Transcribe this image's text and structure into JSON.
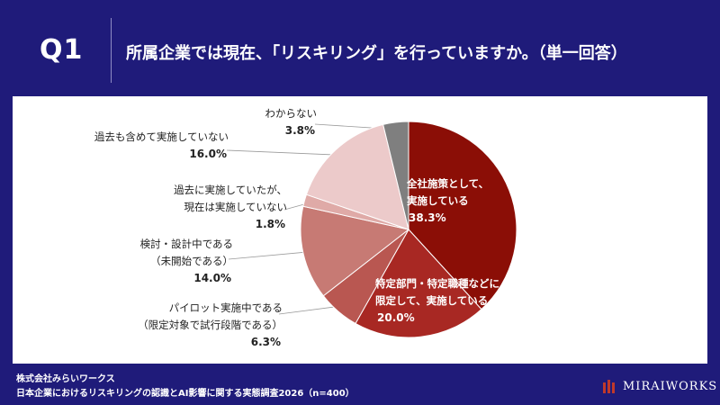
{
  "header": {
    "question": "Q1",
    "title": "所属企業では現在、「リスキリング」を行っていますか。（単一回答）"
  },
  "chart_data": {
    "type": "pie",
    "slices": [
      {
        "label_lines": [
          "全社施策として、",
          "実施している"
        ],
        "value": 38.3,
        "value_text": "38.3%",
        "color": "#8b0e06"
      },
      {
        "label_lines": [
          "特定部門・特定職種などに",
          "限定して、実施している"
        ],
        "value": 20.0,
        "value_text": "20.0%",
        "color": "#a82823"
      },
      {
        "label_lines": [
          "パイロット実施中である",
          "（限定対象で試行段階である）"
        ],
        "value": 6.3,
        "value_text": "6.3%",
        "color": "#b95751"
      },
      {
        "label_lines": [
          "検討・設計中である",
          "（未開始である）"
        ],
        "value": 14.0,
        "value_text": "14.0%",
        "color": "#c77a74"
      },
      {
        "label_lines": [
          "過去に実施していたが、",
          "現在は実施していない"
        ],
        "value": 1.8,
        "value_text": "1.8%",
        "color": "#dfaaa7"
      },
      {
        "label_lines": [
          "過去も含めて実施していない"
        ],
        "value": 16.0,
        "value_text": "16.0%",
        "color": "#eccaca"
      },
      {
        "label_lines": [
          "わからない"
        ],
        "value": 3.8,
        "value_text": "3.8%",
        "color": "#7f7f7f"
      }
    ]
  },
  "footer": {
    "company": "株式会社みらいワークス",
    "survey": "日本企業におけるリスキリングの認識とAI影響に関する実態調査2026（n=400）"
  },
  "logo": {
    "text": "MIRAIWORKS",
    "icon": "miraiworks-logo-icon"
  }
}
